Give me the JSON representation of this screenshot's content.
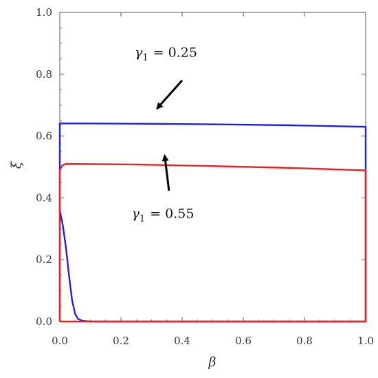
{
  "chart_data": {
    "type": "line",
    "title": "",
    "xlabel": "β",
    "ylabel": "ξ",
    "xlim": [
      0,
      1
    ],
    "ylim": [
      0,
      1
    ],
    "xticks": [
      "0.0",
      "0.2",
      "0.4",
      "0.6",
      "0.8",
      "1.0"
    ],
    "yticks": [
      "0.0",
      "0.2",
      "0.4",
      "0.6",
      "0.8",
      "1.0"
    ],
    "grid": false,
    "legend": "none",
    "series": [
      {
        "color": "#2020e0",
        "points": [
          [
            0.0,
            0.0
          ],
          [
            0.0,
            0.36
          ],
          [
            0.0,
            0.641
          ],
          [
            0.25,
            0.64
          ],
          [
            0.5,
            0.638
          ],
          [
            0.75,
            0.635
          ],
          [
            1.0,
            0.63
          ],
          [
            1.0,
            0.0
          ],
          [
            0.1,
            0.0
          ],
          [
            0.075,
            0.002
          ],
          [
            0.06,
            0.008
          ],
          [
            0.05,
            0.025
          ],
          [
            0.04,
            0.07
          ],
          [
            0.03,
            0.15
          ],
          [
            0.02,
            0.24
          ],
          [
            0.01,
            0.31
          ],
          [
            0.0,
            0.36
          ]
        ]
      },
      {
        "color": "#e82020",
        "points": [
          [
            0.0,
            0.0
          ],
          [
            0.0,
            0.49
          ],
          [
            0.008,
            0.505
          ],
          [
            0.02,
            0.51
          ],
          [
            0.25,
            0.508
          ],
          [
            0.5,
            0.503
          ],
          [
            0.75,
            0.497
          ],
          [
            1.0,
            0.489
          ],
          [
            1.0,
            0.0
          ],
          [
            0.0,
            0.0
          ]
        ]
      }
    ],
    "annotations": [
      {
        "text_var": "γ",
        "text_sub": "1",
        "text_rest": "= 0.25",
        "text_x": 0.245,
        "text_y": 0.8565,
        "arrow_from": [
          0.4,
          0.78
        ],
        "arrow_to": [
          0.318,
          0.689
        ]
      },
      {
        "text_var": "γ",
        "text_sub": "1",
        "text_rest": "= 0.55",
        "text_x": 0.235,
        "text_y": 0.3355,
        "arrow_from": [
          0.357,
          0.423
        ],
        "arrow_to": [
          0.343,
          0.537
        ]
      }
    ]
  }
}
